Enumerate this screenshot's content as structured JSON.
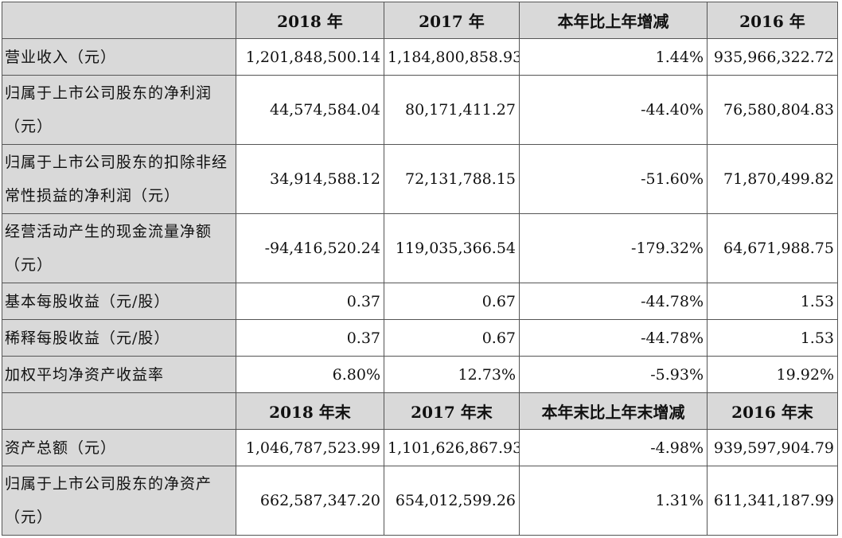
{
  "header1": [
    "",
    "2018 年",
    "2017 年",
    "本年比上年增减",
    "2016 年"
  ],
  "rows1": [
    {
      "label": "营业收入（元）",
      "v2018": "1,201,848,500.14",
      "v2017": "1,184,800,858.93",
      "change": "1.44%",
      "v2016": "935,966,322.72"
    },
    {
      "label": "归属于上市公司股东的净利润（元）",
      "v2018": "44,574,584.04",
      "v2017": "80,171,411.27",
      "change": "-44.40%",
      "v2016": "76,580,804.83"
    },
    {
      "label": "归属于上市公司股东的扣除非经常性损益的净利润（元）",
      "v2018": "34,914,588.12",
      "v2017": "72,131,788.15",
      "change": "-51.60%",
      "v2016": "71,870,499.82"
    },
    {
      "label": "经营活动产生的现金流量净额（元）",
      "v2018": "-94,416,520.24",
      "v2017": "119,035,366.54",
      "change": "-179.32%",
      "v2016": "64,671,988.75"
    },
    {
      "label": "基本每股收益（元/股）",
      "v2018": "0.37",
      "v2017": "0.67",
      "change": "-44.78%",
      "v2016": "1.53"
    },
    {
      "label": "稀释每股收益（元/股）",
      "v2018": "0.37",
      "v2017": "0.67",
      "change": "-44.78%",
      "v2016": "1.53"
    },
    {
      "label": "加权平均净资产收益率",
      "v2018": "6.80%",
      "v2017": "12.73%",
      "change": "-5.93%",
      "v2016": "19.92%"
    }
  ],
  "header2": [
    "",
    "2018 年末",
    "2017 年末",
    "本年末比上年末增减",
    "2016 年末"
  ],
  "rows2": [
    {
      "label": "资产总额（元）",
      "v2018": "1,046,787,523.99",
      "v2017": "1,101,626,867.93",
      "change": "-4.98%",
      "v2016": "939,597,904.79"
    },
    {
      "label": "归属于上市公司股东的净资产（元）",
      "v2018": "662,587,347.20",
      "v2017": "654,012,599.26",
      "change": "1.31%",
      "v2016": "611,341,187.99"
    }
  ]
}
